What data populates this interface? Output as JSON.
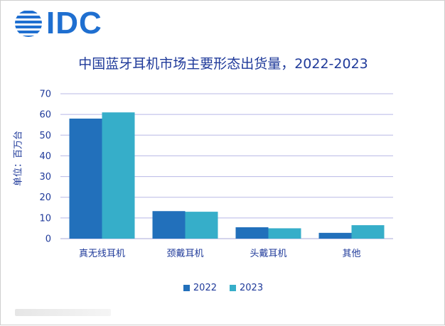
{
  "brand": {
    "logo_text": "IDC",
    "logo_color": "#1f6fd0"
  },
  "chart_data": {
    "type": "bar",
    "title": "中国蓝牙耳机市场主要形态出货量，2022-2023",
    "ylabel": "单位：百万台",
    "xlabel": "",
    "categories": [
      "真无线耳机",
      "颈戴耳机",
      "头戴耳机",
      "其他"
    ],
    "series": [
      {
        "name": "2022",
        "values": [
          58,
          13.3,
          5.5,
          2.8
        ],
        "color": "#2270bb"
      },
      {
        "name": "2023",
        "values": [
          61,
          13,
          5,
          6.5
        ],
        "color": "#36aec9"
      }
    ],
    "ylim": [
      0,
      70
    ],
    "yticks": [
      0,
      10,
      20,
      30,
      40,
      50,
      60,
      70
    ],
    "grid": true,
    "legend": "bottom"
  }
}
